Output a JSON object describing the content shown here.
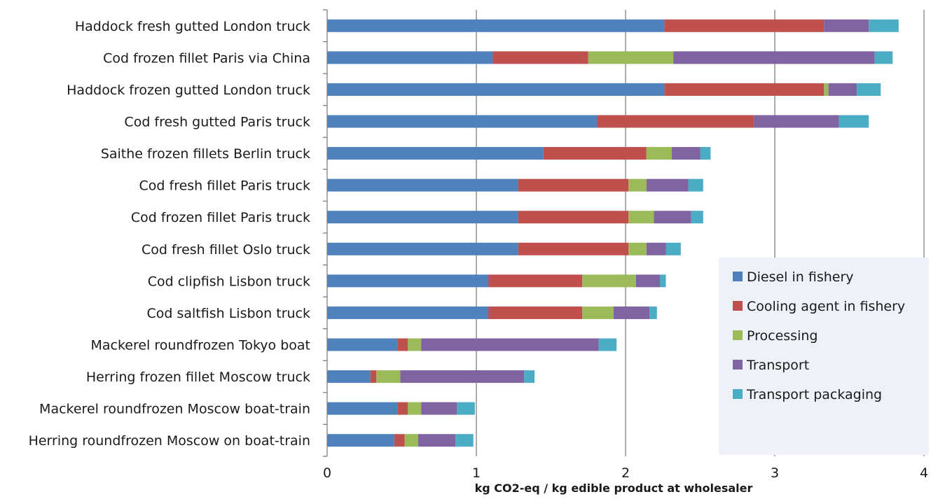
{
  "chart_data": {
    "type": "bar",
    "orientation": "horizontal",
    "stacked": true,
    "title": "",
    "xlabel": "kg CO2-eq / kg edible  product at wholesaler",
    "ylabel": "",
    "xlim": [
      0,
      4
    ],
    "xticks": [
      "0",
      "1",
      "2",
      "3",
      "4"
    ],
    "grid": true,
    "legend_position": "bottom-right",
    "categories": [
      "Haddock fresh gutted London truck",
      "Cod frozen fillet Paris via China",
      "Haddock frozen gutted London truck",
      "Cod fresh gutted Paris truck",
      "Saithe frozen fillets Berlin truck",
      "Cod fresh fillet Paris truck",
      "Cod frozen fillet Paris truck",
      "Cod fresh fillet Oslo truck",
      "Cod clipfish Lisbon truck",
      "Cod saltfish Lisbon truck",
      "Mackerel roundfrozen Tokyo boat",
      "Herring frozen fillet Moscow truck",
      "Mackerel roundfrozen Moscow boat-train",
      "Herring roundfrozen Moscow on boat-train"
    ],
    "series": [
      {
        "name": "Diesel in fishery",
        "color": "#4F81BD",
        "values": [
          2.26,
          1.11,
          2.26,
          1.81,
          1.45,
          1.28,
          1.28,
          1.28,
          1.08,
          1.08,
          0.47,
          0.29,
          0.47,
          0.45
        ]
      },
      {
        "name": "Cooling agent in fishery",
        "color": "#C0504D",
        "values": [
          1.07,
          0.64,
          1.07,
          1.05,
          0.69,
          0.74,
          0.74,
          0.74,
          0.63,
          0.63,
          0.07,
          0.04,
          0.07,
          0.07
        ]
      },
      {
        "name": "Processing",
        "color": "#9BBB59",
        "values": [
          0.0,
          0.57,
          0.03,
          0.0,
          0.17,
          0.12,
          0.17,
          0.12,
          0.36,
          0.21,
          0.09,
          0.16,
          0.09,
          0.09
        ]
      },
      {
        "name": "Transport",
        "color": "#8064A2",
        "values": [
          0.3,
          1.35,
          0.19,
          0.57,
          0.19,
          0.28,
          0.25,
          0.13,
          0.16,
          0.24,
          1.19,
          0.83,
          0.24,
          0.25
        ]
      },
      {
        "name": "Transport packaging",
        "color": "#4BACC6",
        "values": [
          0.2,
          0.12,
          0.16,
          0.2,
          0.07,
          0.1,
          0.08,
          0.1,
          0.04,
          0.05,
          0.12,
          0.07,
          0.12,
          0.12
        ]
      }
    ]
  }
}
